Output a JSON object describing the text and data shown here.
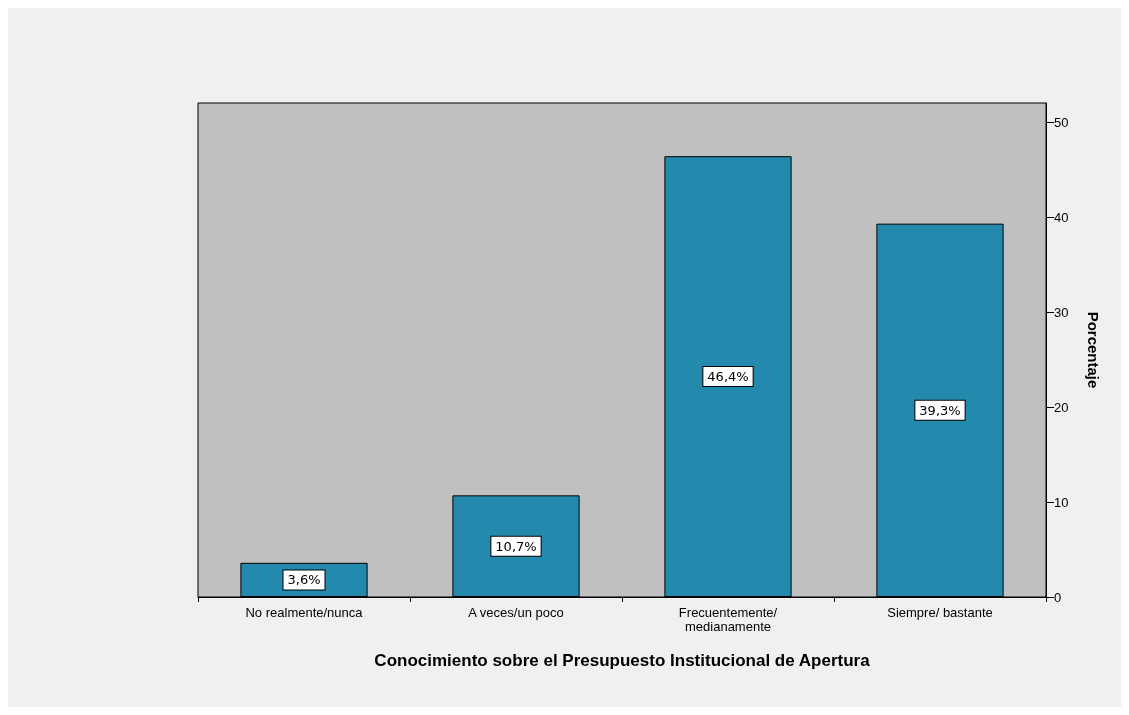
{
  "chart_data": {
    "type": "bar",
    "xlabel": "Conocimiento sobre el Presupuesto Institucional de Apertura",
    "ylabel": "Porcentaje",
    "categories": [
      "No realmente/nunca",
      "A veces/un poco",
      "Frecuentemente/\nmedianamente",
      "Siempre/ bastante"
    ],
    "values": [
      3.6,
      10.7,
      46.4,
      39.3
    ],
    "value_labels": [
      "3,6%",
      "10,7%",
      "46,4%",
      "39,3%"
    ],
    "color": "#248aad",
    "ylim": [
      0,
      52
    ],
    "yticks": [
      0,
      10,
      20,
      30,
      40,
      50
    ],
    "grid": false
  }
}
